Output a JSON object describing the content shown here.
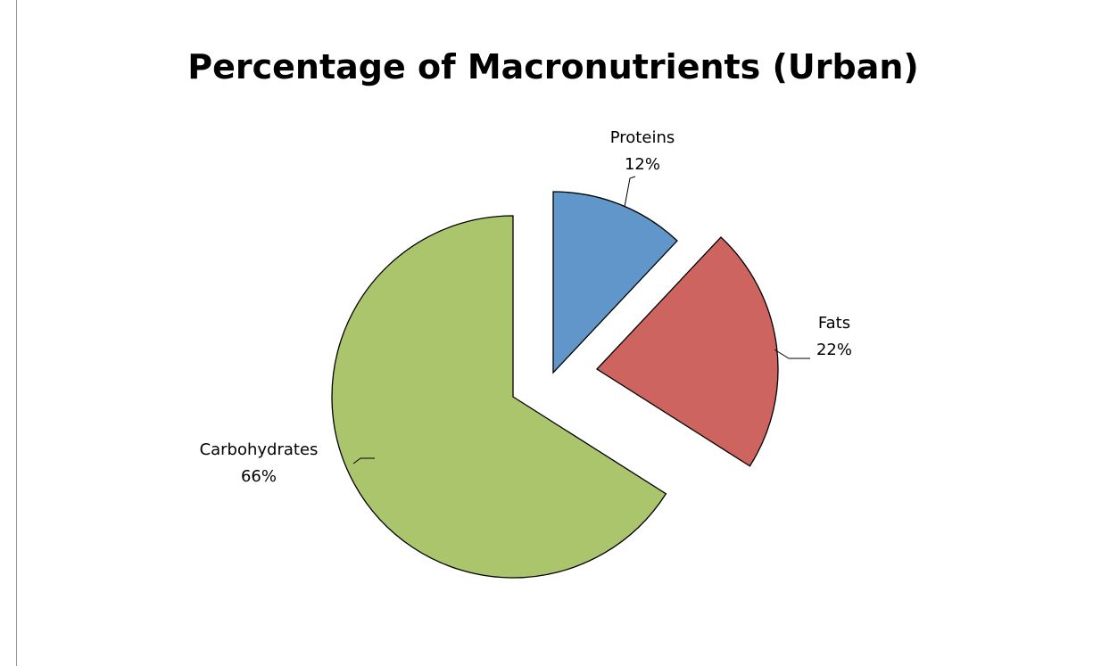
{
  "chart_data": {
    "type": "pie",
    "title": "Percentage of Macronutrients (Urban)",
    "categories": [
      "Proteins",
      "Fats",
      "Carbohydrates"
    ],
    "values": [
      12,
      22,
      66
    ],
    "value_labels": [
      "12%",
      "22%",
      "66%"
    ],
    "colors": [
      "#6096c9",
      "#cd6460",
      "#abc56d"
    ]
  }
}
